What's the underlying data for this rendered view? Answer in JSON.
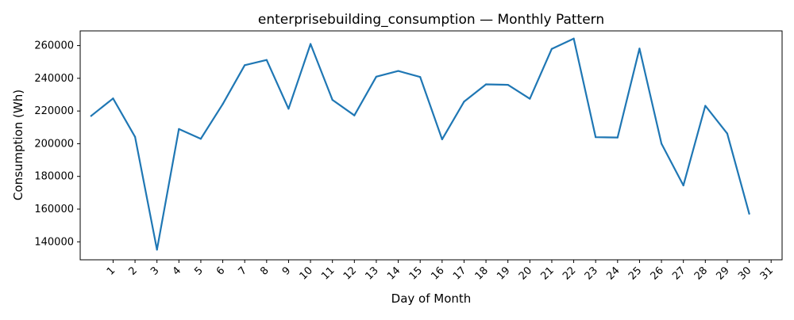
{
  "chart_data": {
    "type": "line",
    "title": "enterprisebuilding_consumption — Monthly Pattern",
    "xlabel": "Day of Month",
    "ylabel": "Consumption (Wh)",
    "x_ticks": [
      "1",
      "2",
      "3",
      "4",
      "5",
      "6",
      "7",
      "8",
      "9",
      "10",
      "11",
      "12",
      "13",
      "14",
      "15",
      "16",
      "17",
      "18",
      "19",
      "20",
      "21",
      "22",
      "23",
      "24",
      "25",
      "26",
      "27",
      "28",
      "29",
      "30",
      "31"
    ],
    "y_ticks": [
      140000,
      160000,
      180000,
      200000,
      220000,
      240000,
      260000
    ],
    "ylim": [
      129000,
      269000
    ],
    "xlim": [
      -0.5,
      31.5
    ],
    "grid": false,
    "line_color": "#1f77b4",
    "series": [
      {
        "x": [
          0,
          1,
          2,
          3,
          4,
          5,
          6,
          7,
          8,
          9,
          10,
          11,
          12,
          13,
          14,
          15,
          16,
          17,
          18,
          19,
          20,
          21,
          22,
          23,
          24,
          25,
          26,
          27,
          28,
          29,
          30
        ],
        "values": [
          217000,
          227700,
          204200,
          135200,
          209000,
          203000,
          224300,
          248000,
          251200,
          221400,
          261000,
          226800,
          217300,
          241000,
          244500,
          240800,
          202700,
          225700,
          236300,
          236000,
          227500,
          258000,
          264300,
          204000,
          203800,
          258200,
          200000,
          174500,
          223200,
          206200,
          157200
        ]
      }
    ]
  }
}
